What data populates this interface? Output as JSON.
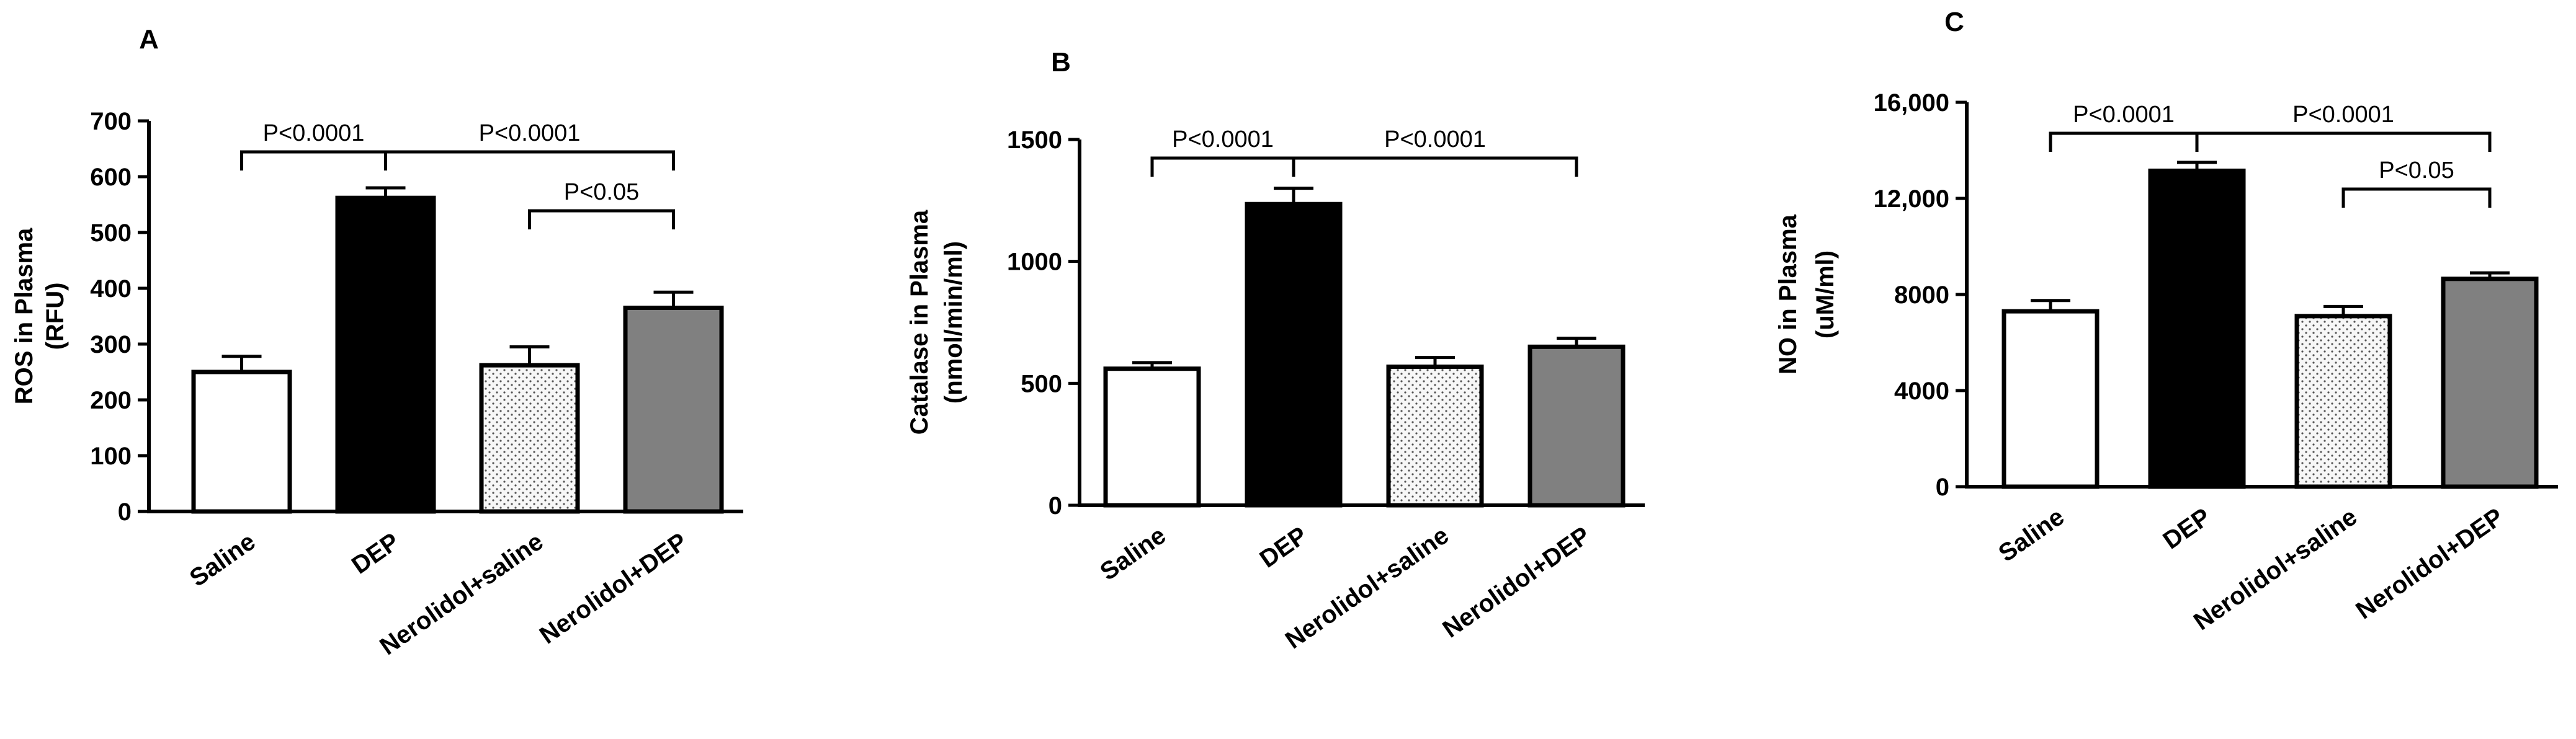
{
  "colors": {
    "axis": "#000000",
    "bar_outline": "#000000",
    "saline_fill": "#ffffff",
    "dep_fill": "#000000",
    "nerolidol_saline_fill": "#f2f2f2",
    "nerolidol_dep_fill": "#808080"
  },
  "chart_data": [
    {
      "type": "bar",
      "panel": "A",
      "ylabel": "ROS in Plasma",
      "ylabel_unit": "(RFU)",
      "categories": [
        "Saline",
        "DEP",
        "Nerolidol+saline",
        "Nerolidol+DEP"
      ],
      "values": [
        250,
        562,
        262,
        365
      ],
      "errors": [
        28,
        18,
        33,
        28
      ],
      "ylim": [
        0,
        700
      ],
      "yticks": [
        "0",
        "100",
        "200",
        "300",
        "400",
        "500",
        "600",
        "700"
      ],
      "fills": [
        "white",
        "black",
        "dotted",
        "gray"
      ],
      "significance": [
        {
          "from": 0,
          "to": 1,
          "label": "P<0.0001"
        },
        {
          "from": 1,
          "to": 3,
          "label": "P<0.0001"
        },
        {
          "from": 2,
          "to": 3,
          "label": "P<0.05"
        }
      ]
    },
    {
      "type": "bar",
      "panel": "B",
      "ylabel": "Catalase in Plasma",
      "ylabel_unit": "(nmol/min/ml)",
      "categories": [
        "Saline",
        "DEP",
        "Nerolidol+saline",
        "Nerolidol+DEP"
      ],
      "values": [
        560,
        1235,
        568,
        650
      ],
      "errors": [
        25,
        65,
        38,
        35
      ],
      "ylim": [
        0,
        1500
      ],
      "yticks": [
        "0",
        "500",
        "1000",
        "1500"
      ],
      "fills": [
        "white",
        "black",
        "dotted",
        "gray"
      ],
      "significance": [
        {
          "from": 0,
          "to": 1,
          "label": "P<0.0001"
        },
        {
          "from": 1,
          "to": 3,
          "label": "P<0.0001"
        }
      ]
    },
    {
      "type": "bar",
      "panel": "C",
      "ylabel": "NO in Plasma",
      "ylabel_unit": "(uM/ml)",
      "categories": [
        "Saline",
        "DEP",
        "Nerolidol+saline",
        "Nerolidol+DEP"
      ],
      "values": [
        7300,
        13150,
        7100,
        8650
      ],
      "errors": [
        450,
        350,
        400,
        250
      ],
      "ylim": [
        0,
        16000
      ],
      "yticks": [
        "0",
        "4000",
        "8000",
        "12,000",
        "16,000"
      ],
      "fills": [
        "white",
        "black",
        "dotted",
        "gray"
      ],
      "significance": [
        {
          "from": 0,
          "to": 1,
          "label": "P<0.0001"
        },
        {
          "from": 1,
          "to": 3,
          "label": "P<0.0001"
        },
        {
          "from": 2,
          "to": 3,
          "label": "P<0.05"
        }
      ]
    }
  ]
}
